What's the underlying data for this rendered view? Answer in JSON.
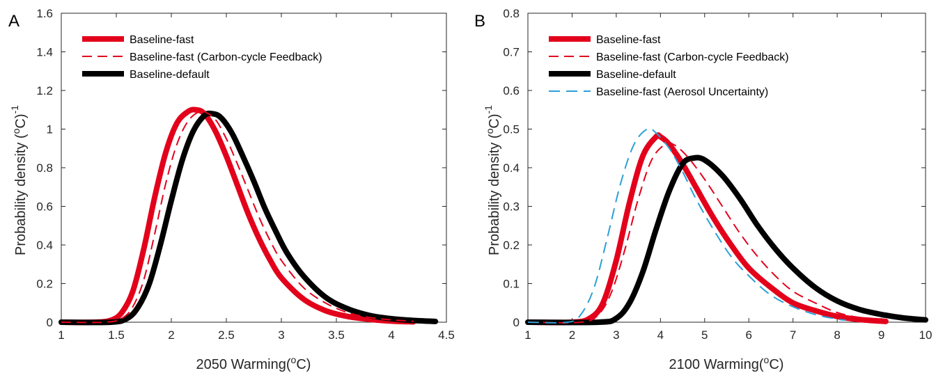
{
  "chart_data": [
    {
      "type": "line",
      "panel_label": "A",
      "xlabel": "2050 Warming(",
      "xlabel_unit": "o",
      "xlabel_end": "C)",
      "ylabel": "Probability density (",
      "ylabel_unit": "o",
      "ylabel_end": "C)",
      "ylabel_exp": "-1",
      "xlim": [
        1,
        4.5
      ],
      "ylim": [
        0,
        1.6
      ],
      "xticks": [
        "1",
        "1.5",
        "2",
        "2.5",
        "3",
        "3.5",
        "4",
        "4.5"
      ],
      "yticks": [
        "0",
        "0.2",
        "0.4",
        "0.6",
        "0.8",
        "1",
        "1.2",
        "1.4",
        "1.6"
      ],
      "legend_position": "top-left",
      "series": [
        {
          "name": "Baseline-fast",
          "color": "#e3001b",
          "style": "solid-thick",
          "x": [
            1.0,
            1.3,
            1.45,
            1.55,
            1.65,
            1.75,
            1.85,
            1.95,
            2.05,
            2.15,
            2.22,
            2.3,
            2.4,
            2.5,
            2.6,
            2.7,
            2.8,
            2.9,
            3.0,
            3.2,
            3.4,
            3.6,
            3.8,
            4.0,
            4.2
          ],
          "y": [
            0,
            0,
            0.01,
            0.05,
            0.16,
            0.38,
            0.65,
            0.88,
            1.03,
            1.09,
            1.1,
            1.08,
            0.99,
            0.86,
            0.71,
            0.56,
            0.43,
            0.32,
            0.23,
            0.12,
            0.06,
            0.03,
            0.015,
            0.006,
            0.002
          ]
        },
        {
          "name": "Baseline-fast (Carbon-cycle Feedback)",
          "color": "#e3001b",
          "style": "dashed-thin",
          "x": [
            1.0,
            1.4,
            1.55,
            1.65,
            1.75,
            1.85,
            1.95,
            2.05,
            2.15,
            2.25,
            2.3,
            2.4,
            2.5,
            2.6,
            2.7,
            2.8,
            2.9,
            3.0,
            3.2,
            3.4,
            3.6,
            3.8,
            4.0,
            4.2
          ],
          "y": [
            0,
            0,
            0.02,
            0.08,
            0.22,
            0.46,
            0.72,
            0.92,
            1.04,
            1.09,
            1.09,
            1.05,
            0.95,
            0.82,
            0.68,
            0.54,
            0.42,
            0.32,
            0.18,
            0.1,
            0.05,
            0.025,
            0.012,
            0.005
          ]
        },
        {
          "name": "Baseline-default",
          "color": "#000000",
          "style": "solid-thick",
          "x": [
            1.0,
            1.45,
            1.6,
            1.7,
            1.8,
            1.9,
            2.0,
            2.1,
            2.2,
            2.3,
            2.37,
            2.45,
            2.55,
            2.65,
            2.75,
            2.85,
            2.95,
            3.05,
            3.2,
            3.4,
            3.6,
            3.8,
            4.0,
            4.2,
            4.4
          ],
          "y": [
            0,
            0,
            0.02,
            0.08,
            0.2,
            0.4,
            0.63,
            0.84,
            0.99,
            1.07,
            1.08,
            1.06,
            0.98,
            0.86,
            0.73,
            0.59,
            0.47,
            0.36,
            0.24,
            0.13,
            0.07,
            0.035,
            0.018,
            0.009,
            0.004
          ]
        }
      ]
    },
    {
      "type": "line",
      "panel_label": "B",
      "xlabel": "2100 Warming(",
      "xlabel_unit": "o",
      "xlabel_end": "C)",
      "ylabel": "Probability density (",
      "ylabel_unit": "o",
      "ylabel_end": "C)",
      "ylabel_exp": "-1",
      "xlim": [
        1,
        10
      ],
      "ylim": [
        0,
        0.8
      ],
      "xticks": [
        "1",
        "2",
        "3",
        "4",
        "5",
        "6",
        "7",
        "8",
        "9",
        "10"
      ],
      "yticks": [
        "0",
        "0.1",
        "0.2",
        "0.3",
        "0.4",
        "0.5",
        "0.6",
        "0.7",
        "0.8"
      ],
      "legend_position": "top-left",
      "series": [
        {
          "name": "Baseline-fast",
          "color": "#e3001b",
          "style": "solid-thick",
          "x": [
            1.0,
            2.0,
            2.4,
            2.7,
            3.0,
            3.3,
            3.6,
            3.9,
            4.0,
            4.2,
            4.5,
            4.8,
            5.2,
            5.6,
            6.0,
            6.5,
            7.0,
            7.5,
            8.0,
            8.5,
            9.1
          ],
          "y": [
            0,
            0,
            0.01,
            0.05,
            0.16,
            0.31,
            0.43,
            0.48,
            0.48,
            0.46,
            0.41,
            0.35,
            0.27,
            0.2,
            0.14,
            0.09,
            0.05,
            0.03,
            0.015,
            0.007,
            0.002
          ]
        },
        {
          "name": "Baseline-fast (Carbon-cycle Feedback)",
          "color": "#e3001b",
          "style": "dashed-thin",
          "x": [
            1.0,
            2.2,
            2.6,
            2.9,
            3.2,
            3.5,
            3.8,
            4.1,
            4.3,
            4.6,
            5.0,
            5.4,
            5.8,
            6.2,
            6.6,
            7.0,
            7.5,
            8.0,
            8.5,
            9.0
          ],
          "y": [
            0,
            0,
            0.02,
            0.08,
            0.19,
            0.32,
            0.42,
            0.46,
            0.46,
            0.43,
            0.37,
            0.3,
            0.23,
            0.17,
            0.12,
            0.08,
            0.05,
            0.025,
            0.012,
            0.005
          ]
        },
        {
          "name": "Baseline-default",
          "color": "#000000",
          "style": "solid-thick",
          "x": [
            1.0,
            2.6,
            3.0,
            3.3,
            3.6,
            3.9,
            4.2,
            4.5,
            4.75,
            5.0,
            5.4,
            5.8,
            6.2,
            6.6,
            7.0,
            7.5,
            8.0,
            8.5,
            9.0,
            9.5,
            10.0
          ],
          "y": [
            0,
            0,
            0.01,
            0.05,
            0.13,
            0.24,
            0.34,
            0.41,
            0.425,
            0.42,
            0.38,
            0.32,
            0.25,
            0.19,
            0.14,
            0.09,
            0.055,
            0.033,
            0.02,
            0.011,
            0.006
          ]
        },
        {
          "name": "Baseline-fast (Aerosol Uncertainty)",
          "color": "#2b9fd8",
          "style": "dashed-long",
          "x": [
            1.0,
            1.9,
            2.2,
            2.5,
            2.8,
            3.1,
            3.4,
            3.7,
            3.9,
            4.2,
            4.5,
            4.8,
            5.2,
            5.6,
            6.0,
            6.5,
            7.0,
            7.5,
            8.0,
            8.2
          ],
          "y": [
            0,
            0,
            0.02,
            0.09,
            0.22,
            0.36,
            0.46,
            0.5,
            0.49,
            0.45,
            0.39,
            0.32,
            0.24,
            0.17,
            0.12,
            0.07,
            0.04,
            0.02,
            0.008,
            0.005
          ]
        }
      ]
    }
  ]
}
